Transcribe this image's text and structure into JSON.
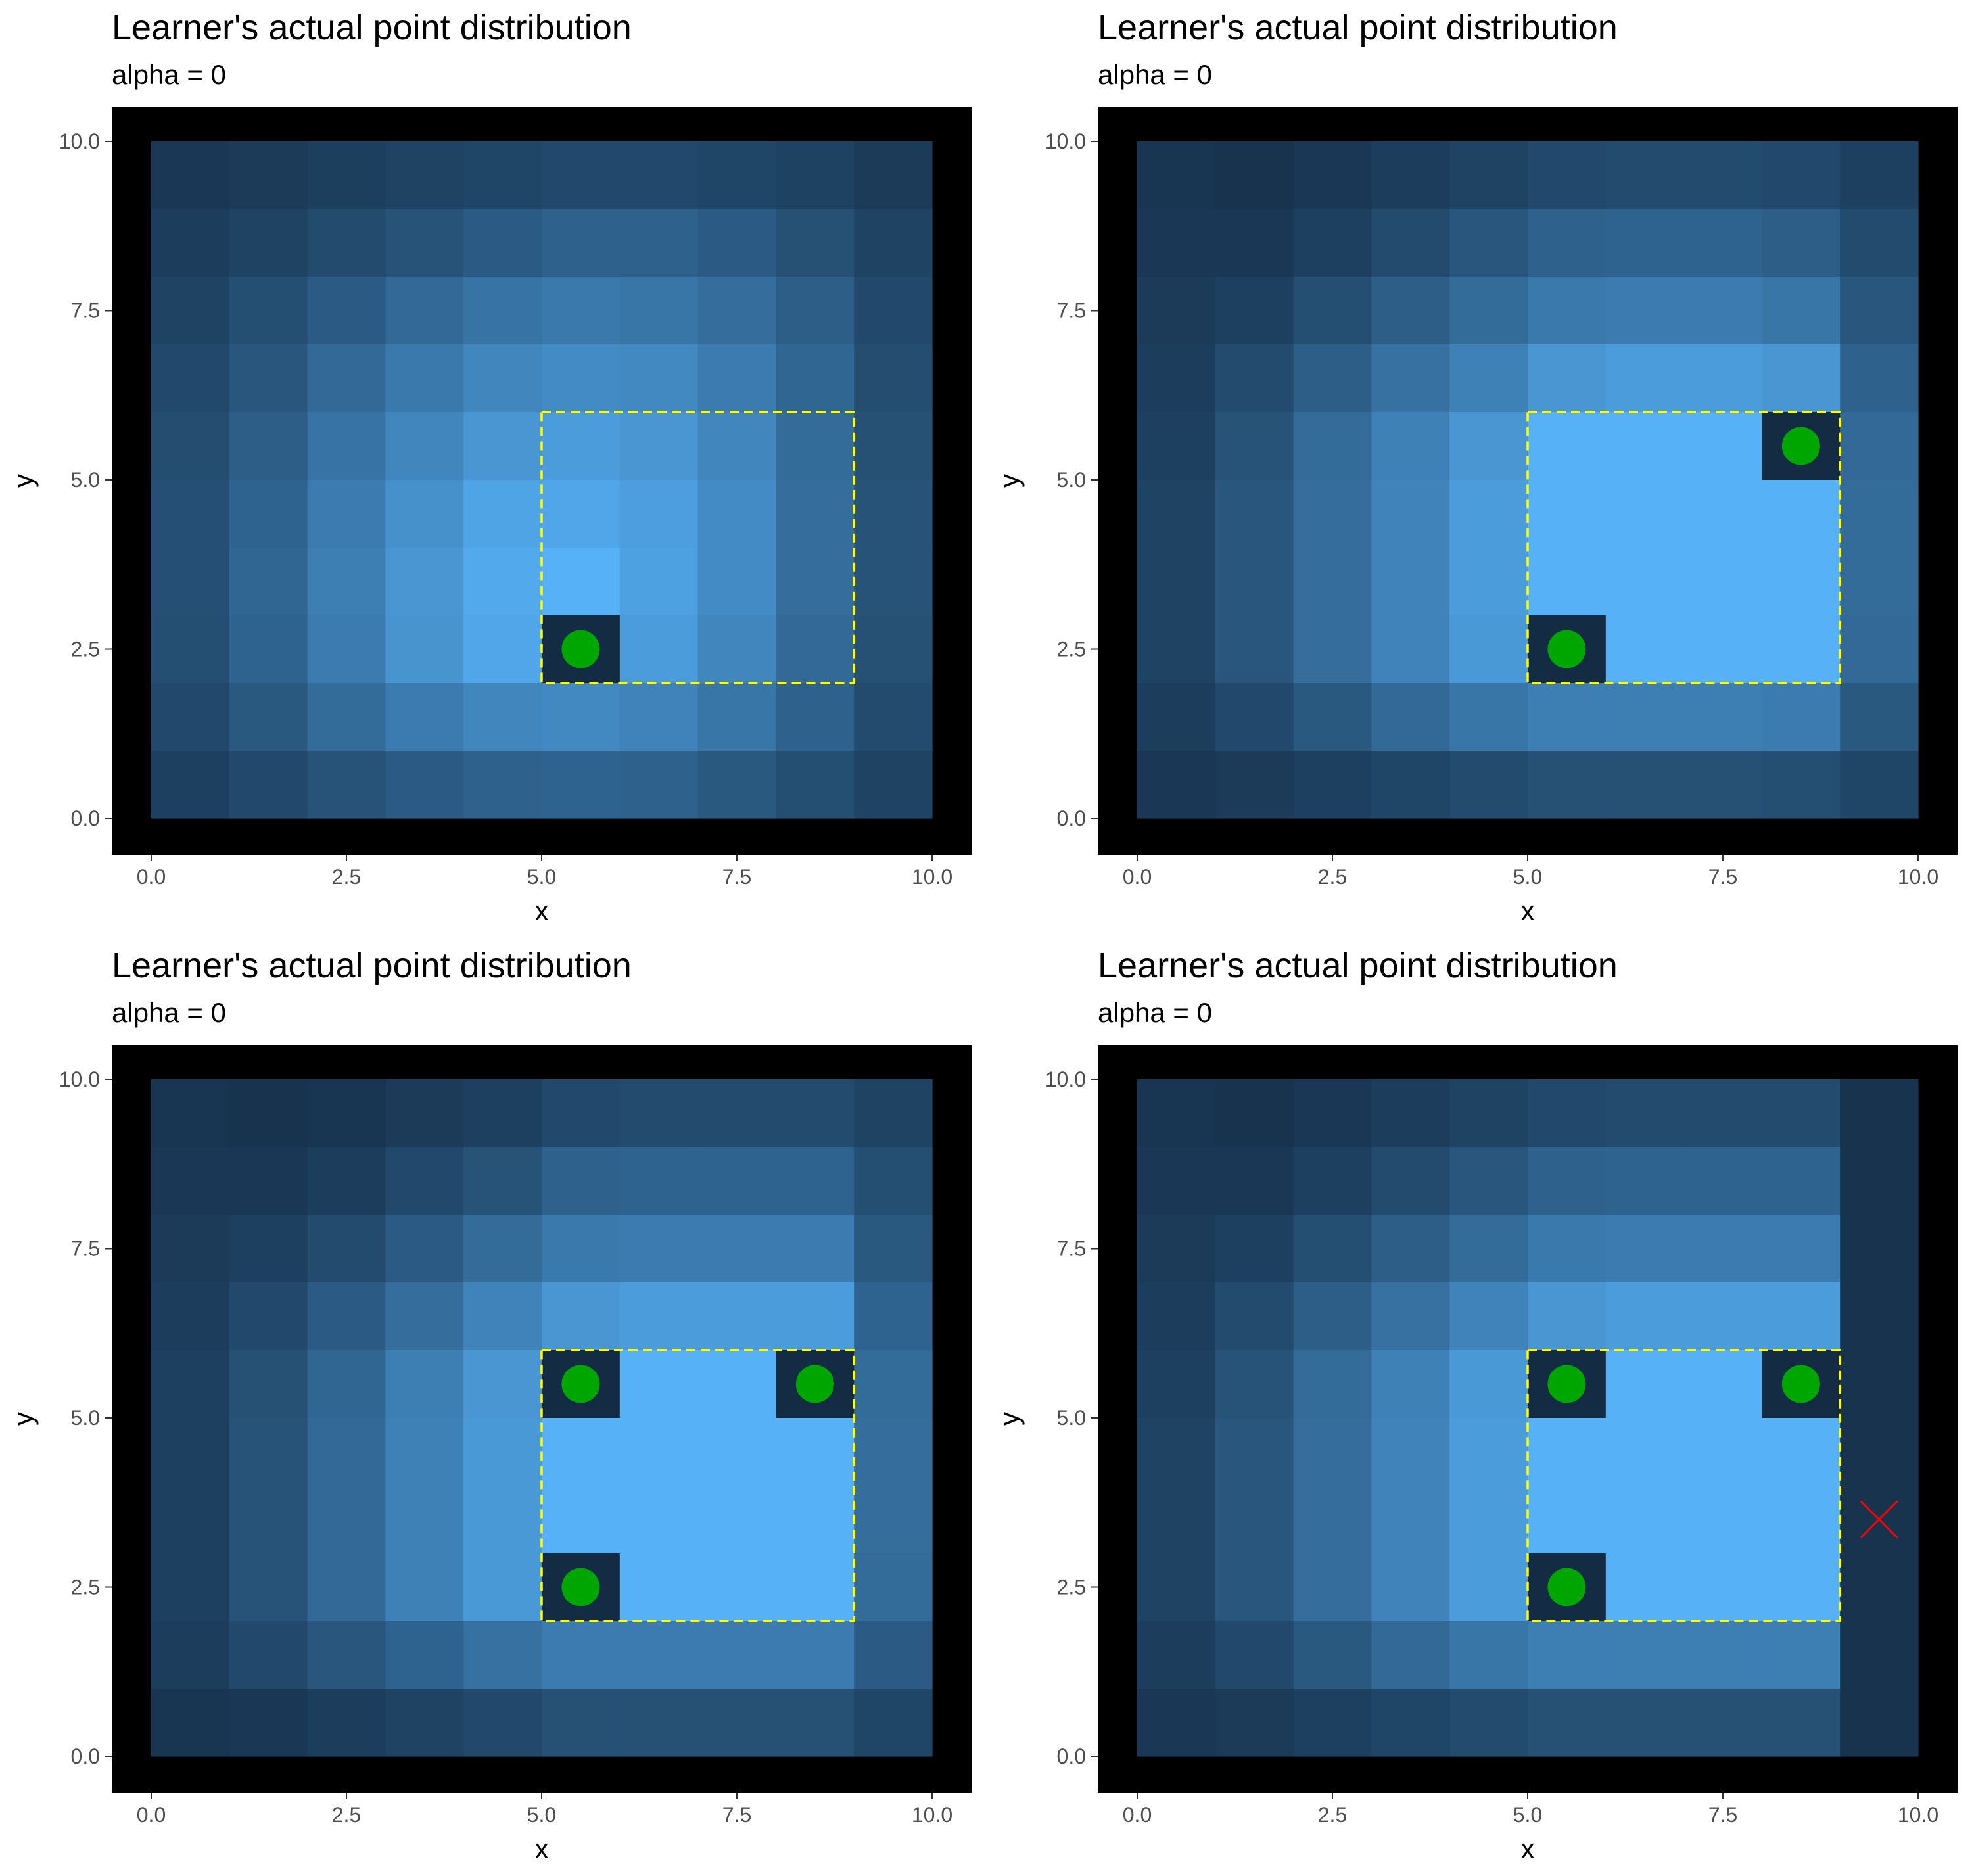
{
  "colors": {
    "panel_background": "#000000",
    "highlight_box": "#ffff00",
    "point": "#00a600",
    "cross": "#ff0000",
    "empty_cell": "#132b43",
    "tile_low": "#132b43",
    "tile_high": "#56b1f7"
  },
  "chart_data": [
    {
      "type": "heatmap",
      "title": "Learner's actual point distribution",
      "subtitle": "alpha = 0",
      "xlabel": "x",
      "ylabel": "y",
      "xlim": [
        0,
        10
      ],
      "ylim": [
        0,
        10
      ],
      "x_ticks": [
        "0.0",
        "2.5",
        "5.0",
        "7.5",
        "10.0"
      ],
      "y_ticks": [
        "0.0",
        "2.5",
        "5.0",
        "7.5",
        "10.0"
      ],
      "grid": false,
      "cell_size": 1,
      "values_rows_top_to_bottom": [
        [
          0.1,
          0.12,
          0.15,
          0.18,
          0.2,
          0.22,
          0.22,
          0.2,
          0.17,
          0.12
        ],
        [
          0.14,
          0.18,
          0.24,
          0.3,
          0.36,
          0.4,
          0.4,
          0.36,
          0.28,
          0.18
        ],
        [
          0.18,
          0.26,
          0.36,
          0.46,
          0.54,
          0.58,
          0.56,
          0.5,
          0.38,
          0.22
        ],
        [
          0.22,
          0.32,
          0.46,
          0.58,
          0.68,
          0.72,
          0.7,
          0.6,
          0.44,
          0.25
        ],
        [
          0.25,
          0.38,
          0.54,
          0.68,
          0.8,
          0.84,
          0.8,
          0.68,
          0.48,
          0.28
        ],
        [
          0.27,
          0.42,
          0.6,
          0.76,
          0.9,
          0.92,
          0.86,
          0.72,
          0.5,
          0.3
        ],
        [
          0.27,
          0.44,
          0.62,
          0.8,
          0.94,
          1.0,
          0.88,
          0.72,
          0.5,
          0.3
        ],
        [
          0.26,
          0.42,
          0.6,
          0.78,
          0.92,
          0.0,
          0.84,
          0.68,
          0.46,
          0.28
        ],
        [
          0.22,
          0.34,
          0.48,
          0.6,
          0.68,
          0.7,
          0.66,
          0.56,
          0.4,
          0.24
        ],
        [
          0.16,
          0.22,
          0.3,
          0.36,
          0.4,
          0.42,
          0.4,
          0.34,
          0.26,
          0.18
        ]
      ],
      "highlight_rect": {
        "x0": 5,
        "x1": 9,
        "y0": 2,
        "y1": 6
      },
      "points": [
        {
          "x": 5.5,
          "y": 2.5
        }
      ],
      "crosses": []
    },
    {
      "type": "heatmap",
      "title": "Learner's actual point distribution",
      "subtitle": "alpha = 0",
      "xlabel": "x",
      "ylabel": "y",
      "xlim": [
        0,
        10
      ],
      "ylim": [
        0,
        10
      ],
      "x_ticks": [
        "0.0",
        "2.5",
        "5.0",
        "7.5",
        "10.0"
      ],
      "y_ticks": [
        "0.0",
        "2.5",
        "5.0",
        "7.5",
        "10.0"
      ],
      "grid": false,
      "cell_size": 1,
      "values_rows_top_to_bottom": [
        [
          0.08,
          0.06,
          0.1,
          0.14,
          0.18,
          0.22,
          0.24,
          0.24,
          0.22,
          0.16
        ],
        [
          0.1,
          0.1,
          0.16,
          0.24,
          0.32,
          0.4,
          0.42,
          0.42,
          0.38,
          0.24
        ],
        [
          0.12,
          0.16,
          0.26,
          0.38,
          0.48,
          0.58,
          0.6,
          0.6,
          0.56,
          0.32
        ],
        [
          0.14,
          0.24,
          0.38,
          0.52,
          0.64,
          0.8,
          0.84,
          0.84,
          0.8,
          0.4
        ],
        [
          0.16,
          0.3,
          0.48,
          0.64,
          0.8,
          1.0,
          1.0,
          1.0,
          0.0,
          0.46
        ],
        [
          0.18,
          0.32,
          0.5,
          0.66,
          0.84,
          1.0,
          1.0,
          1.0,
          1.0,
          0.48
        ],
        [
          0.18,
          0.32,
          0.5,
          0.66,
          0.84,
          1.0,
          1.0,
          1.0,
          1.0,
          0.48
        ],
        [
          0.18,
          0.32,
          0.5,
          0.66,
          0.82,
          0.0,
          1.0,
          1.0,
          1.0,
          0.46
        ],
        [
          0.14,
          0.22,
          0.34,
          0.46,
          0.56,
          0.62,
          0.62,
          0.62,
          0.6,
          0.34
        ],
        [
          0.1,
          0.12,
          0.16,
          0.2,
          0.24,
          0.28,
          0.28,
          0.28,
          0.26,
          0.2
        ]
      ],
      "highlight_rect": {
        "x0": 5,
        "x1": 9,
        "y0": 2,
        "y1": 6
      },
      "points": [
        {
          "x": 5.5,
          "y": 2.5
        },
        {
          "x": 8.5,
          "y": 5.5
        }
      ],
      "crosses": []
    },
    {
      "type": "heatmap",
      "title": "Learner's actual point distribution",
      "subtitle": "alpha = 0",
      "xlabel": "x",
      "ylabel": "y",
      "xlim": [
        0,
        10
      ],
      "ylim": [
        0,
        10
      ],
      "x_ticks": [
        "0.0",
        "2.5",
        "5.0",
        "7.5",
        "10.0"
      ],
      "y_ticks": [
        "0.0",
        "2.5",
        "5.0",
        "7.5",
        "10.0"
      ],
      "grid": false,
      "cell_size": 1,
      "values_rows_top_to_bottom": [
        [
          0.08,
          0.06,
          0.08,
          0.12,
          0.16,
          0.22,
          0.24,
          0.24,
          0.24,
          0.18
        ],
        [
          0.1,
          0.1,
          0.14,
          0.22,
          0.3,
          0.4,
          0.42,
          0.42,
          0.42,
          0.26
        ],
        [
          0.12,
          0.16,
          0.24,
          0.36,
          0.48,
          0.58,
          0.6,
          0.6,
          0.6,
          0.34
        ],
        [
          0.14,
          0.22,
          0.36,
          0.5,
          0.66,
          0.8,
          0.84,
          0.84,
          0.84,
          0.42
        ],
        [
          0.16,
          0.28,
          0.44,
          0.62,
          0.8,
          0.0,
          1.0,
          1.0,
          0.0,
          0.48
        ],
        [
          0.16,
          0.3,
          0.46,
          0.64,
          0.82,
          1.0,
          1.0,
          1.0,
          1.0,
          0.5
        ],
        [
          0.16,
          0.3,
          0.46,
          0.64,
          0.82,
          1.0,
          1.0,
          1.0,
          1.0,
          0.5
        ],
        [
          0.16,
          0.3,
          0.46,
          0.64,
          0.82,
          0.0,
          1.0,
          1.0,
          1.0,
          0.48
        ],
        [
          0.14,
          0.22,
          0.32,
          0.42,
          0.52,
          0.6,
          0.6,
          0.6,
          0.6,
          0.36
        ],
        [
          0.08,
          0.1,
          0.14,
          0.18,
          0.22,
          0.28,
          0.28,
          0.28,
          0.28,
          0.2
        ]
      ],
      "highlight_rect": {
        "x0": 5,
        "x1": 9,
        "y0": 2,
        "y1": 6
      },
      "points": [
        {
          "x": 5.5,
          "y": 2.5
        },
        {
          "x": 5.5,
          "y": 5.5
        },
        {
          "x": 8.5,
          "y": 5.5
        }
      ],
      "crosses": []
    },
    {
      "type": "heatmap",
      "title": "Learner's actual point distribution",
      "subtitle": "alpha = 0",
      "xlabel": "x",
      "ylabel": "y",
      "xlim": [
        0,
        10
      ],
      "ylim": [
        0,
        10
      ],
      "x_ticks": [
        "0.0",
        "2.5",
        "5.0",
        "7.5",
        "10.0"
      ],
      "y_ticks": [
        "0.0",
        "2.5",
        "5.0",
        "7.5",
        "10.0"
      ],
      "grid": false,
      "cell_size": 1,
      "values_rows_top_to_bottom": [
        [
          0.08,
          0.06,
          0.1,
          0.14,
          0.18,
          0.22,
          0.24,
          0.24,
          0.24,
          0.06
        ],
        [
          0.1,
          0.1,
          0.16,
          0.24,
          0.32,
          0.4,
          0.42,
          0.42,
          0.42,
          0.06
        ],
        [
          0.12,
          0.16,
          0.26,
          0.38,
          0.48,
          0.58,
          0.6,
          0.6,
          0.6,
          0.06
        ],
        [
          0.14,
          0.24,
          0.38,
          0.52,
          0.66,
          0.8,
          0.84,
          0.84,
          0.84,
          0.06
        ],
        [
          0.16,
          0.3,
          0.48,
          0.64,
          0.82,
          0.0,
          1.0,
          1.0,
          0.0,
          0.06
        ],
        [
          0.18,
          0.32,
          0.5,
          0.66,
          0.84,
          1.0,
          1.0,
          1.0,
          1.0,
          0.06
        ],
        [
          0.18,
          0.32,
          0.5,
          0.66,
          0.84,
          1.0,
          1.0,
          1.0,
          1.0,
          0.06
        ],
        [
          0.18,
          0.32,
          0.5,
          0.66,
          0.84,
          0.0,
          1.0,
          1.0,
          1.0,
          0.06
        ],
        [
          0.14,
          0.22,
          0.34,
          0.46,
          0.56,
          0.62,
          0.62,
          0.62,
          0.62,
          0.06
        ],
        [
          0.1,
          0.12,
          0.16,
          0.2,
          0.24,
          0.28,
          0.28,
          0.28,
          0.28,
          0.06
        ]
      ],
      "highlight_rect": {
        "x0": 5,
        "x1": 9,
        "y0": 2,
        "y1": 6
      },
      "points": [
        {
          "x": 5.5,
          "y": 2.5
        },
        {
          "x": 5.5,
          "y": 5.5
        },
        {
          "x": 8.5,
          "y": 5.5
        }
      ],
      "crosses": [
        {
          "x": 9.5,
          "y": 3.5
        }
      ]
    }
  ]
}
